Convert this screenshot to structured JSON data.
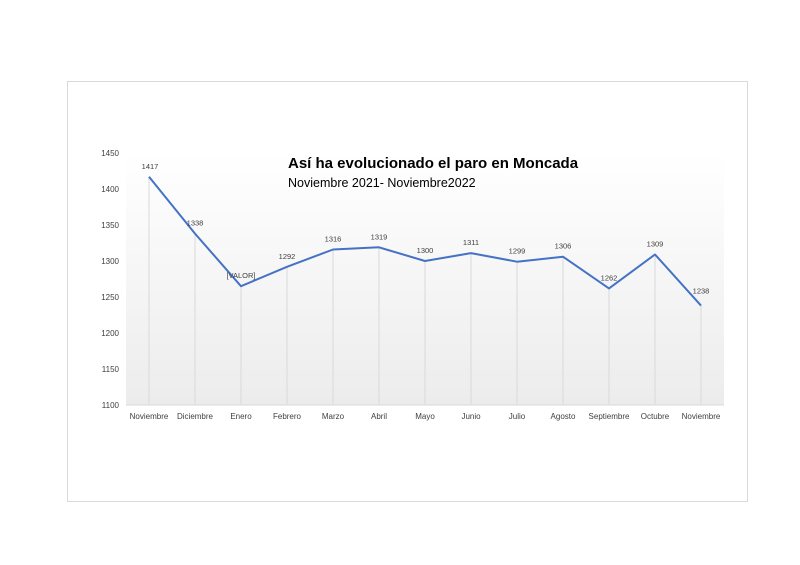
{
  "chart_data": {
    "type": "line",
    "title": "Así ha evolucionado el paro en Moncada",
    "subtitle": "Noviembre 2021- Noviembre2022",
    "xlabel": "",
    "ylabel": "",
    "categories": [
      "Noviembre",
      "Diciembre",
      "Enero",
      "Febrero",
      "Marzo",
      "Abril",
      "Mayo",
      "Junio",
      "Julio",
      "Agosto",
      "Septiembre",
      "Octubre",
      "Noviembre"
    ],
    "values": [
      1417,
      1338,
      1265,
      1292,
      1316,
      1319,
      1300,
      1311,
      1299,
      1306,
      1262,
      1309,
      1238
    ],
    "data_labels": [
      "1417",
      "1338",
      "[VALOR]",
      "1292",
      "1316",
      "1319",
      "1300",
      "1311",
      "1299",
      "1306",
      "1262",
      "1309",
      "1238"
    ],
    "ylim": [
      1100,
      1450
    ],
    "yticks": [
      1100,
      1150,
      1200,
      1250,
      1300,
      1350,
      1400,
      1450
    ],
    "grid": "vertical drop lines",
    "legend": "none",
    "line_color": "#4472c4",
    "drop_line_color": "#d9d9d9"
  }
}
